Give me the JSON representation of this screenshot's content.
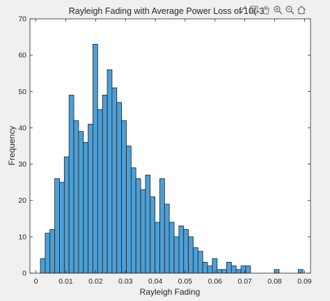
{
  "chart_data": {
    "type": "bar",
    "title": "Rayleigh Fading with Average Power Loss of 10(-3",
    "xlabel": "Rayleigh Fading",
    "ylabel": "Frequency",
    "xlim": [
      -0.002,
      0.092
    ],
    "ylim": [
      0,
      70
    ],
    "xticks": [
      0,
      0.01,
      0.02,
      0.03,
      0.04,
      0.05,
      0.06,
      0.07,
      0.08,
      0.09
    ],
    "xtick_labels": [
      "0",
      "0.01",
      "0.02",
      "0.03",
      "0.04",
      "0.05",
      "0.06",
      "0.07",
      "0.08",
      "0.09"
    ],
    "yticks": [
      0,
      10,
      20,
      30,
      40,
      50,
      60,
      70
    ],
    "ytick_labels": [
      "0",
      "10",
      "20",
      "30",
      "40",
      "50",
      "60",
      "70"
    ],
    "bin_start": 0.0015,
    "bin_width": 0.0016,
    "values": [
      4,
      11,
      12,
      26,
      25,
      32,
      49,
      42,
      39,
      36,
      41,
      63,
      45,
      49,
      56,
      51,
      47,
      42,
      35,
      29,
      26,
      23,
      27,
      21,
      14,
      26,
      19,
      14,
      10,
      13,
      12,
      10,
      7,
      6,
      3,
      2,
      4,
      1,
      1,
      3,
      2,
      1,
      2,
      2,
      0,
      0,
      0,
      0,
      0,
      1,
      0,
      0,
      0,
      0,
      1
    ],
    "bar_color": "#4d9fd6",
    "edge_color": "#1f1f1f",
    "grid": false
  },
  "toolbar": {
    "icons": [
      "brush-icon",
      "datatip-icon",
      "pan-icon",
      "zoom-in-icon",
      "zoom-out-icon",
      "home-icon"
    ]
  }
}
